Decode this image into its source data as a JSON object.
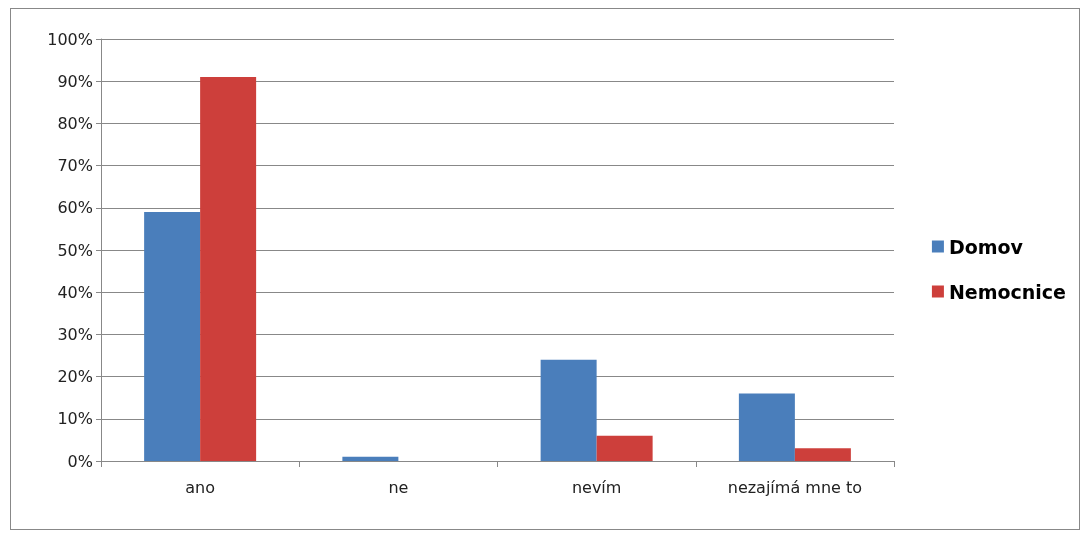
{
  "chart_data": {
    "type": "bar",
    "categories": [
      "ano",
      "ne",
      "nevím",
      "nezajímá mne to"
    ],
    "series": [
      {
        "name": "Domov",
        "color": "#4a7ebb",
        "values": [
          59,
          1,
          24,
          16
        ]
      },
      {
        "name": "Nemocnice",
        "color": "#cd3f3b",
        "values": [
          91,
          0,
          6,
          3
        ]
      }
    ],
    "ylim": [
      0,
      100
    ],
    "yticks": [
      {
        "value": 0,
        "label": "0%"
      },
      {
        "value": 10,
        "label": "10%"
      },
      {
        "value": 20,
        "label": "20%"
      },
      {
        "value": 30,
        "label": "30%"
      },
      {
        "value": 40,
        "label": "40%"
      },
      {
        "value": 50,
        "label": "50%"
      },
      {
        "value": 60,
        "label": "60%"
      },
      {
        "value": 70,
        "label": "70%"
      },
      {
        "value": 80,
        "label": "80%"
      },
      {
        "value": 90,
        "label": "90%"
      },
      {
        "value": 100,
        "label": "100%"
      }
    ],
    "grid": "y",
    "legend": "right"
  }
}
